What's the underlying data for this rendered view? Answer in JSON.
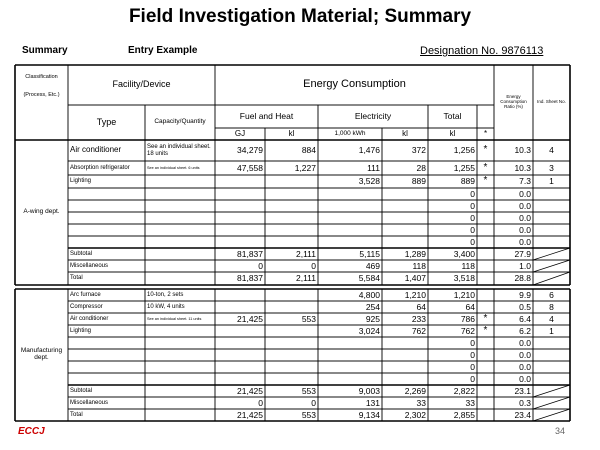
{
  "header": {
    "title": "Field Investigation Material; Summary",
    "label": "Summary",
    "example": "Entry Example",
    "designation": "Designation No. 9876113"
  },
  "table": {
    "head": {
      "classification": "Classification",
      "classification_sub": "(Process, Etc.)",
      "facility": "Facility/Device",
      "energy": "Energy Consumption",
      "type": "Type",
      "capacity": "Capacity/Quantity",
      "fuel": "Fuel and Heat",
      "electricity": "Electricity",
      "total": "Total",
      "ratio": "Energy Consumption Ratio (%)",
      "sheet": "Ind. Sheet No.",
      "units": [
        "GJ",
        "kl",
        "1,000 kWh",
        "kl",
        "kl",
        "*"
      ]
    },
    "sections": [
      {
        "name": "A-wing dept.",
        "rows": [
          [
            "Air conditioner",
            "See an individual sheet. 18 units",
            "34,279",
            "884",
            "1,476",
            "372",
            "1,256",
            "*",
            "10.3",
            "4"
          ],
          [
            "Absorption refrigerator",
            "See an individual sheet. 6 units",
            "47,558",
            "1,227",
            "111",
            "28",
            "1,255",
            "*",
            "10.3",
            "3"
          ],
          [
            "Lighting",
            null,
            null,
            null,
            "3,528",
            "889",
            "889",
            "*",
            "7.3",
            "1"
          ],
          [
            null,
            null,
            null,
            null,
            null,
            null,
            "0",
            null,
            "0.0",
            null
          ],
          [
            null,
            null,
            null,
            null,
            null,
            null,
            "0",
            null,
            "0.0",
            null
          ],
          [
            null,
            null,
            null,
            null,
            null,
            null,
            "0",
            null,
            "0.0",
            null
          ],
          [
            null,
            null,
            null,
            null,
            null,
            null,
            "0",
            null,
            "0.0",
            null
          ],
          [
            null,
            null,
            null,
            null,
            null,
            null,
            "0",
            null,
            "0.0",
            null
          ],
          [
            "Subtotal",
            null,
            "81,837",
            "2,111",
            "5,115",
            "1,289",
            "3,400",
            null,
            "27.9",
            null
          ],
          [
            "Miscellaneous",
            null,
            "0",
            "0",
            "469",
            "118",
            "118",
            null,
            "1.0",
            null
          ],
          [
            "Total",
            null,
            "81,837",
            "2,111",
            "5,584",
            "1,407",
            "3,518",
            null,
            "28.8",
            null
          ]
        ]
      },
      {
        "name": "Manufacturing dept.",
        "rows": [
          [
            "Arc furnace",
            "10-ton, 2 sets",
            null,
            null,
            "4,800",
            "1,210",
            "1,210",
            null,
            "9.9",
            "6"
          ],
          [
            "Compressor",
            "10 kW, 4 units",
            null,
            null,
            "254",
            "64",
            "64",
            null,
            "0.5",
            "8"
          ],
          [
            "Air conditioner",
            "See an individual sheet. 11 units",
            "21,425",
            "553",
            "925",
            "233",
            "786",
            "*",
            "6.4",
            "4"
          ],
          [
            "Lighting",
            null,
            null,
            null,
            "3,024",
            "762",
            "762",
            "*",
            "6.2",
            "1"
          ],
          [
            null,
            null,
            null,
            null,
            null,
            null,
            "0",
            null,
            "0.0",
            null
          ],
          [
            null,
            null,
            null,
            null,
            null,
            null,
            "0",
            null,
            "0.0",
            null
          ],
          [
            null,
            null,
            null,
            null,
            null,
            null,
            "0",
            null,
            "0.0",
            null
          ],
          [
            null,
            null,
            null,
            null,
            null,
            null,
            "0",
            null,
            "0.0",
            null
          ],
          [
            "Subtotal",
            null,
            "21,425",
            "553",
            "9,003",
            "2,269",
            "2,822",
            null,
            "23.1",
            null
          ],
          [
            "Miscellaneous",
            null,
            "0",
            "0",
            "131",
            "33",
            "33",
            null,
            "0.3",
            null
          ],
          [
            "Total",
            null,
            "21,425",
            "553",
            "9,134",
            "2,302",
            "2,855",
            null,
            "23.4",
            null
          ]
        ]
      }
    ]
  },
  "footer": {
    "logo": "ECCJ",
    "page": "34"
  }
}
